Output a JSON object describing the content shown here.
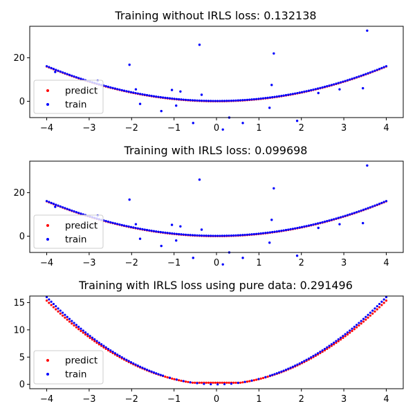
{
  "colors": {
    "predict": "#ff0000",
    "train": "#0000ff",
    "axis": "#000000",
    "background": "#ffffff"
  },
  "chart_data": [
    {
      "type": "scatter",
      "title": "Training without IRLS loss: 0.132138",
      "xlabel": "",
      "ylabel": "",
      "xlim": [
        -4.4,
        4.4
      ],
      "ylim": [
        -7.5,
        34.5
      ],
      "xticks": [
        -4,
        -3,
        -2,
        -1,
        0,
        1,
        2,
        3,
        4
      ],
      "yticks": [
        0,
        20
      ],
      "grid": false,
      "legend": {
        "position": "lower-left",
        "entries": [
          "predict",
          "train"
        ]
      },
      "curve": {
        "kind": "predict-on-train",
        "fn": "x^2",
        "xrange": [
          -4,
          4
        ],
        "points": 150
      },
      "outliers": [
        {
          "x": -2.05,
          "y": 16.8
        },
        {
          "x": -1.9,
          "y": 5.5
        },
        {
          "x": -1.8,
          "y": -1.2
        },
        {
          "x": -1.3,
          "y": -4.5
        },
        {
          "x": -1.05,
          "y": 5.2
        },
        {
          "x": -0.95,
          "y": -2.0
        },
        {
          "x": -0.85,
          "y": 4.5
        },
        {
          "x": -0.55,
          "y": -10.0
        },
        {
          "x": -0.4,
          "y": 26.0
        },
        {
          "x": -0.35,
          "y": 3.0
        },
        {
          "x": 0.15,
          "y": -13.0
        },
        {
          "x": 0.3,
          "y": -7.5
        },
        {
          "x": 0.62,
          "y": -10.0
        },
        {
          "x": 1.25,
          "y": -3.0
        },
        {
          "x": 1.3,
          "y": 7.5
        },
        {
          "x": 1.35,
          "y": 22.0
        },
        {
          "x": 1.9,
          "y": -9.0
        },
        {
          "x": 2.4,
          "y": 3.8
        },
        {
          "x": 2.9,
          "y": 5.5
        },
        {
          "x": 3.45,
          "y": 6.0
        },
        {
          "x": 3.55,
          "y": 32.5
        },
        {
          "x": -2.8,
          "y": 9.5
        },
        {
          "x": -3.8,
          "y": 13.5
        }
      ]
    },
    {
      "type": "scatter",
      "title": "Training with IRLS loss: 0.099698",
      "xlabel": "",
      "ylabel": "",
      "xlim": [
        -4.4,
        4.4
      ],
      "ylim": [
        -7.5,
        34.5
      ],
      "xticks": [
        -4,
        -3,
        -2,
        -1,
        0,
        1,
        2,
        3,
        4
      ],
      "yticks": [
        0,
        20
      ],
      "grid": false,
      "legend": {
        "position": "lower-left",
        "entries": [
          "predict",
          "train"
        ]
      },
      "curve": {
        "kind": "predict-on-train",
        "fn": "x^2",
        "xrange": [
          -4,
          4
        ],
        "points": 150
      },
      "outliers": [
        {
          "x": -2.05,
          "y": 16.8
        },
        {
          "x": -1.9,
          "y": 5.5
        },
        {
          "x": -1.8,
          "y": -1.2
        },
        {
          "x": -1.3,
          "y": -4.5
        },
        {
          "x": -1.05,
          "y": 5.2
        },
        {
          "x": -0.95,
          "y": -2.0
        },
        {
          "x": -0.85,
          "y": 4.5
        },
        {
          "x": -0.55,
          "y": -10.0
        },
        {
          "x": -0.4,
          "y": 26.0
        },
        {
          "x": -0.35,
          "y": 3.0
        },
        {
          "x": 0.15,
          "y": -13.0
        },
        {
          "x": 0.3,
          "y": -7.5
        },
        {
          "x": 0.62,
          "y": -10.0
        },
        {
          "x": 1.25,
          "y": -3.0
        },
        {
          "x": 1.3,
          "y": 7.5
        },
        {
          "x": 1.35,
          "y": 22.0
        },
        {
          "x": 1.9,
          "y": -9.0
        },
        {
          "x": 2.4,
          "y": 3.8
        },
        {
          "x": 2.9,
          "y": 5.5
        },
        {
          "x": 3.45,
          "y": 6.0
        },
        {
          "x": 3.55,
          "y": 32.5
        },
        {
          "x": -2.8,
          "y": 9.5
        },
        {
          "x": -3.8,
          "y": 13.5
        }
      ]
    },
    {
      "type": "scatter",
      "title": "Training with IRLS loss using pure data: 0.291496",
      "xlabel": "",
      "ylabel": "",
      "xlim": [
        -4.4,
        4.4
      ],
      "ylim": [
        -0.8,
        16.2
      ],
      "xticks": [
        -4,
        -3,
        -2,
        -1,
        0,
        1,
        2,
        3,
        4
      ],
      "yticks": [
        0,
        5,
        10,
        15
      ],
      "grid": false,
      "legend": {
        "position": "lower-left",
        "entries": [
          "predict",
          "train"
        ]
      },
      "curve": {
        "kind": "predict-below-train",
        "fn": "x^2",
        "xrange": [
          -4,
          4
        ],
        "points": 150,
        "predict_floor": 0.3
      },
      "outliers": []
    }
  ]
}
